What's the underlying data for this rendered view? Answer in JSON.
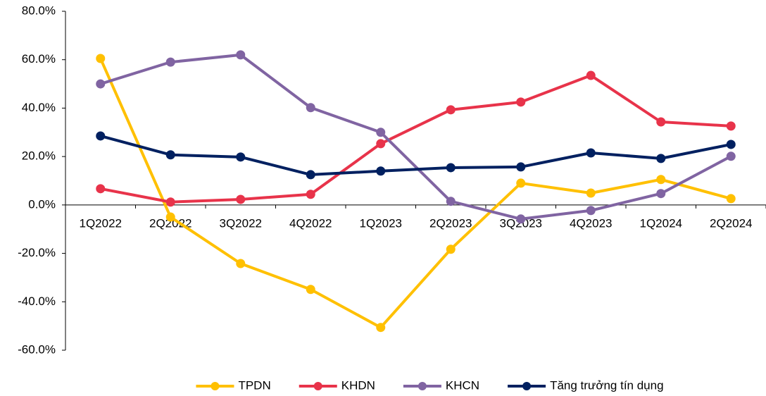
{
  "chart_data": {
    "type": "line",
    "categories": [
      "1Q2022",
      "2Q2022",
      "3Q2022",
      "4Q2022",
      "1Q2023",
      "2Q2023",
      "3Q2023",
      "4Q2023",
      "1Q2024",
      "2Q2024"
    ],
    "series": [
      {
        "name": "TPDN",
        "color": "#FFC000",
        "values": [
          60.5,
          -5,
          -24.2,
          -34.9,
          -50.6,
          -18.3,
          9.0,
          4.9,
          10.5,
          2.6
        ]
      },
      {
        "name": "KHDN",
        "color": "#E8334A",
        "values": [
          6.7,
          1.2,
          2.3,
          4.4,
          25.3,
          39.3,
          42.5,
          53.5,
          34.3,
          32.6
        ]
      },
      {
        "name": "KHCN",
        "color": "#8064A2",
        "values": [
          50.0,
          59.0,
          62.0,
          40.2,
          30.0,
          1.5,
          -5.8,
          -2.3,
          4.7,
          20.1
        ]
      },
      {
        "name": "Tăng trưởng tín dụng",
        "color": "#002060",
        "values": [
          28.5,
          20.7,
          19.8,
          12.5,
          14.0,
          15.4,
          15.7,
          21.5,
          19.2,
          25.0
        ]
      }
    ],
    "ylim": [
      -60,
      80
    ],
    "yticks": [
      {
        "value": -60,
        "label": "-60.0%"
      },
      {
        "value": -40,
        "label": "-40.0%"
      },
      {
        "value": -20,
        "label": "-20.0%"
      },
      {
        "value": 0,
        "label": "0.0%"
      },
      {
        "value": 20,
        "label": "20.0%"
      },
      {
        "value": 40,
        "label": "40.0%"
      },
      {
        "value": 60,
        "label": "60.0%"
      },
      {
        "value": 80,
        "label": "80.0%"
      }
    ],
    "grid": false,
    "legend": "bottom"
  }
}
